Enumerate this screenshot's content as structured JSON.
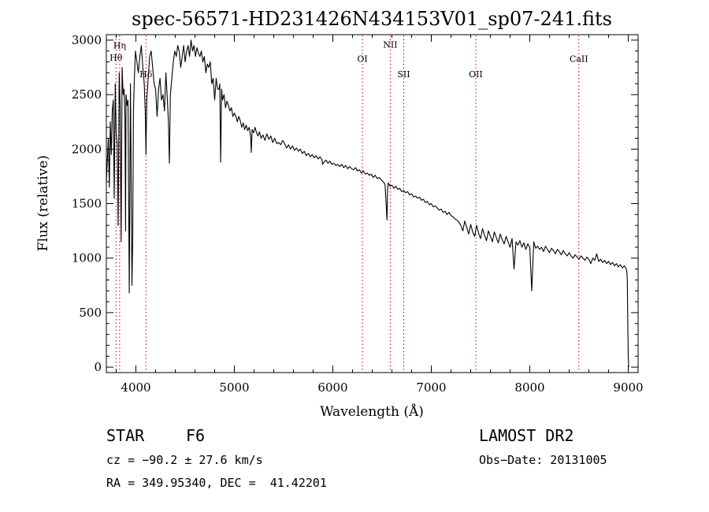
{
  "chart_data": {
    "type": "line",
    "title": "spec-56571-HD231426N434153V01_sp07-241.fits",
    "xlabel": "Wavelength (Å)",
    "ylabel": "Flux (relative)",
    "xlim": [
      3700,
      9100
    ],
    "ylim": [
      -50,
      3050
    ],
    "grid": false,
    "x_ticks": [
      4000,
      5000,
      6000,
      7000,
      8000,
      9000
    ],
    "y_ticks": [
      0,
      500,
      1000,
      1500,
      2000,
      2500,
      3000
    ],
    "x_tick_labels": [
      "4000",
      "5000",
      "6000",
      "7000",
      "8000",
      "9000"
    ],
    "y_tick_labels": [
      "0",
      "500",
      "1000",
      "1500",
      "2000",
      "2500",
      "3000"
    ],
    "line_color": "#000000",
    "marker_color": "#cc0000",
    "line_markers": [
      {
        "label": "Hθ",
        "x": 3798,
        "y": 2810
      },
      {
        "label": "Hη",
        "x": 3835,
        "y": 2925
      },
      {
        "label": "Hδ",
        "x": 4102,
        "y": 2660
      },
      {
        "label": "OI",
        "x": 6300,
        "y": 2800
      },
      {
        "label": "NII",
        "x": 6583,
        "y": 2930
      },
      {
        "label": "SII",
        "x": 6720,
        "y": 2660
      },
      {
        "label": "OII",
        "x": 7452,
        "y": 2660
      },
      {
        "label": "CaII",
        "x": 8498,
        "y": 2800
      }
    ],
    "series": [
      {
        "x": [
          3700,
          3710,
          3720,
          3730,
          3740,
          3750,
          3760,
          3770,
          3780,
          3790,
          3800,
          3810,
          3820,
          3830,
          3840,
          3850,
          3860,
          3870,
          3880,
          3889,
          3895,
          3900,
          3910,
          3920,
          3933,
          3945,
          3960,
          3968,
          3975,
          3985,
          3995,
          4010,
          4025,
          4040,
          4055,
          4070,
          4085,
          4095,
          4102,
          4110,
          4125,
          4140,
          4155,
          4170,
          4185,
          4200,
          4215,
          4230,
          4245,
          4260,
          4275,
          4290,
          4305,
          4320,
          4330,
          4340,
          4350,
          4365,
          4380,
          4395,
          4410,
          4425,
          4440,
          4455,
          4470,
          4485,
          4500,
          4515,
          4530,
          4545,
          4560,
          4575,
          4590,
          4605,
          4620,
          4635,
          4650,
          4665,
          4680,
          4695,
          4710,
          4725,
          4740,
          4755,
          4770,
          4785,
          4800,
          4815,
          4830,
          4845,
          4852,
          4861,
          4870,
          4880,
          4895,
          4910,
          4925,
          4940,
          4955,
          4970,
          4985,
          5000,
          5015,
          5030,
          5045,
          5060,
          5075,
          5090,
          5105,
          5120,
          5135,
          5150,
          5165,
          5172,
          5180,
          5195,
          5210,
          5225,
          5240,
          5255,
          5270,
          5290,
          5310,
          5330,
          5350,
          5370,
          5390,
          5410,
          5430,
          5450,
          5470,
          5490,
          5510,
          5530,
          5550,
          5570,
          5590,
          5610,
          5630,
          5650,
          5670,
          5690,
          5710,
          5730,
          5750,
          5770,
          5790,
          5810,
          5830,
          5850,
          5870,
          5890,
          5895,
          5910,
          5930,
          5950,
          5970,
          5990,
          6010,
          6030,
          6050,
          6070,
          6090,
          6110,
          6130,
          6150,
          6170,
          6190,
          6210,
          6230,
          6250,
          6270,
          6290,
          6310,
          6330,
          6350,
          6370,
          6390,
          6410,
          6430,
          6450,
          6470,
          6490,
          6510,
          6530,
          6550,
          6555,
          6563,
          6570,
          6580,
          6600,
          6620,
          6640,
          6660,
          6680,
          6700,
          6720,
          6740,
          6760,
          6780,
          6800,
          6820,
          6840,
          6860,
          6880,
          6900,
          6920,
          6940,
          6960,
          6980,
          7000,
          7020,
          7040,
          7060,
          7080,
          7100,
          7120,
          7140,
          7160,
          7180,
          7200,
          7220,
          7240,
          7260,
          7280,
          7300,
          7320,
          7340,
          7360,
          7380,
          7400,
          7420,
          7440,
          7460,
          7480,
          7500,
          7520,
          7540,
          7560,
          7580,
          7600,
          7620,
          7640,
          7660,
          7680,
          7700,
          7720,
          7740,
          7760,
          7780,
          7800,
          7820,
          7840,
          7860,
          7880,
          7900,
          7920,
          7940,
          7960,
          7980,
          8000,
          8020,
          8040,
          8060,
          8080,
          8100,
          8120,
          8140,
          8160,
          8180,
          8200,
          8220,
          8240,
          8260,
          8280,
          8300,
          8320,
          8340,
          8360,
          8380,
          8400,
          8420,
          8440,
          8460,
          8480,
          8500,
          8520,
          8540,
          8560,
          8580,
          8600,
          8620,
          8640,
          8660,
          8680,
          8700,
          8720,
          8740,
          8760,
          8780,
          8800,
          8820,
          8840,
          8860,
          8880,
          8900,
          8920,
          8940,
          8960,
          8980,
          8985,
          8990,
          8995,
          9000,
          9005
        ],
        "y": [
          1700,
          1900,
          2100,
          1650,
          2250,
          1950,
          2350,
          2450,
          1550,
          2600,
          2150,
          2050,
          1300,
          2700,
          2400,
          1150,
          2750,
          2500,
          2550,
          2300,
          1250,
          2500,
          2400,
          2450,
          680,
          2600,
          750,
          1200,
          2350,
          2650,
          2900,
          2800,
          2700,
          2850,
          2950,
          2750,
          2600,
          2350,
          1950,
          2450,
          2650,
          2850,
          2900,
          2750,
          2600,
          2550,
          2300,
          2550,
          2650,
          2450,
          2500,
          2350,
          2700,
          2450,
          2250,
          1870,
          2500,
          2650,
          2800,
          2900,
          2850,
          2950,
          2900,
          2750,
          2850,
          2950,
          2800,
          2900,
          2950,
          2850,
          3000,
          2900,
          2950,
          2850,
          2930,
          2880,
          2850,
          2900,
          2800,
          2850,
          2700,
          2780,
          2750,
          2800,
          2600,
          2650,
          2450,
          2650,
          2550,
          2550,
          2600,
          1880,
          2550,
          2450,
          2500,
          2380,
          2440,
          2400,
          2350,
          2380,
          2300,
          2330,
          2300,
          2250,
          2300,
          2260,
          2200,
          2240,
          2180,
          2220,
          2170,
          2200,
          2120,
          1970,
          2180,
          2150,
          2200,
          2150,
          2120,
          2160,
          2100,
          2130,
          2080,
          2140,
          2090,
          2120,
          2060,
          2100,
          2050,
          2060,
          2040,
          2080,
          2050,
          2010,
          2040,
          2000,
          2030,
          1990,
          2010,
          1980,
          2000,
          1960,
          1980,
          1940,
          1960,
          1930,
          1950,
          1920,
          1940,
          1910,
          1930,
          1900,
          1860,
          1880,
          1900,
          1870,
          1890,
          1860,
          1870,
          1850,
          1860,
          1840,
          1860,
          1830,
          1850,
          1820,
          1840,
          1820,
          1810,
          1830,
          1800,
          1810,
          1780,
          1800,
          1770,
          1780,
          1760,
          1770,
          1740,
          1760,
          1730,
          1740,
          1720,
          1700,
          1680,
          1350,
          1620,
          1690,
          1680,
          1660,
          1670,
          1640,
          1660,
          1630,
          1640,
          1610,
          1620,
          1600,
          1610,
          1580,
          1590,
          1560,
          1570,
          1550,
          1560,
          1530,
          1540,
          1510,
          1520,
          1490,
          1500,
          1470,
          1480,
          1460,
          1440,
          1450,
          1420,
          1430,
          1400,
          1420,
          1390,
          1380,
          1360,
          1350,
          1330,
          1300,
          1250,
          1340,
          1280,
          1220,
          1310,
          1240,
          1200,
          1300,
          1230,
          1180,
          1270,
          1210,
          1160,
          1250,
          1200,
          1150,
          1240,
          1190,
          1140,
          1220,
          1170,
          1130,
          1200,
          1150,
          1100,
          1180,
          900,
          1150,
          1120,
          1160,
          1100,
          1140,
          1080,
          1130,
          1100,
          700,
          1150,
          1090,
          1110,
          1080,
          1100,
          1060,
          1110,
          1080,
          1050,
          1090,
          1070,
          1040,
          1080,
          1060,
          1030,
          1070,
          1040,
          1020,
          1050,
          1020,
          1000,
          1030,
          1010,
          990,
          1020,
          1000,
          980,
          1010,
          990,
          950,
          1000,
          980,
          1040,
          970,
          990,
          960,
          980,
          950,
          970,
          940,
          960,
          930,
          950,
          920,
          940,
          910,
          930,
          900,
          880,
          800,
          400,
          100,
          0
        ]
      }
    ]
  },
  "footer": {
    "object_type": "STAR",
    "subclass": "F6",
    "survey": "LAMOST DR2",
    "velocity": "cz = −90.2 ± 27.6 km/s",
    "obs_date": "Obs−Date: 20131005",
    "coords": "RA = 349.95340, DEC =  41.42201"
  }
}
